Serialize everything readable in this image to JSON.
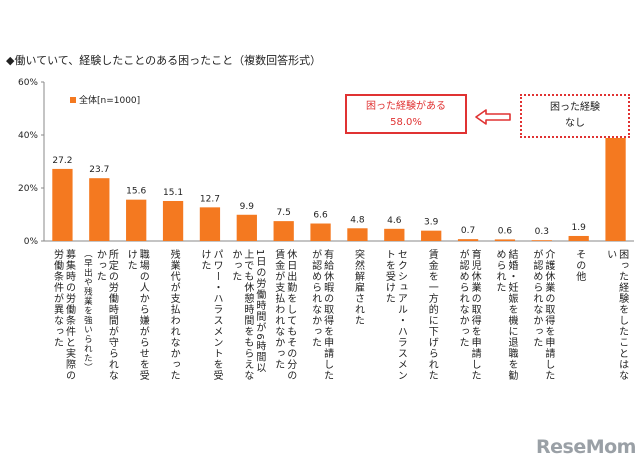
{
  "chart_data": {
    "type": "bar",
    "title": "◆働いていて、経験したことのある困ったこと（複数回答形式）",
    "ylim": [
      0,
      60
    ],
    "yticks": [
      "0%",
      "20%",
      "40%",
      "60%"
    ],
    "ytick_values": [
      0,
      20,
      40,
      60
    ],
    "grid": false,
    "legend": "top-left",
    "bar_color": "#f47920",
    "series": [
      {
        "name": "全体[n=1000]",
        "values": [
          27.2,
          23.7,
          15.6,
          15.1,
          12.7,
          9.9,
          7.5,
          6.6,
          4.8,
          4.6,
          3.9,
          0.7,
          0.6,
          0.3,
          1.9,
          42.0
        ]
      }
    ],
    "value_labels": [
      "27.2",
      "23.7",
      "15.6",
      "15.1",
      "12.7",
      "9.9",
      "7.5",
      "6.6",
      "4.8",
      "4.6",
      "3.9",
      "0.7",
      "0.6",
      "0.3",
      "1.9",
      "42.0"
    ],
    "categories": [
      {
        "main": "募集時の労働条件と実際の労働条件が異なった",
        "sub": ""
      },
      {
        "main": "所定の労働時間が守られなかった",
        "sub": "（早出や残業を強いられた）"
      },
      {
        "main": "職場の人から嫌がらせを受けた",
        "sub": ""
      },
      {
        "main": "残業代が支払われなかった",
        "sub": ""
      },
      {
        "main": "パワー・ハラスメントを受けた",
        "sub": ""
      },
      {
        "main": "1日の労働時間が6時間以上でも休憩時間をもらえなかった",
        "sub": ""
      },
      {
        "main": "休日出勤をしてもその分の賃金が支払われなかった",
        "sub": ""
      },
      {
        "main": "有給休暇の取得を申請したが認められなかった",
        "sub": ""
      },
      {
        "main": "突然解雇された",
        "sub": ""
      },
      {
        "main": "セクシュアル・ハラスメントを受けた",
        "sub": ""
      },
      {
        "main": "賃金を一方的に下げられた",
        "sub": ""
      },
      {
        "main": "育児休業の取得を申請したが認められなかった",
        "sub": ""
      },
      {
        "main": "結婚・妊娠を機に退職を勧められた",
        "sub": ""
      },
      {
        "main": "介護休業の取得を申請したが認められなかった",
        "sub": ""
      },
      {
        "main": "その他",
        "sub": ""
      },
      {
        "main": "困った経験をしたことはない",
        "sub": ""
      }
    ],
    "annotations": {
      "experienced_label": "困った経験がある",
      "experienced_value": "58.0%",
      "none_label_line1": "困った経験",
      "none_label_line2": "なし"
    }
  },
  "watermark": "ReseMom",
  "colors": {
    "bar": "#f47920",
    "accent": "#e03232",
    "axis": "#888888"
  }
}
